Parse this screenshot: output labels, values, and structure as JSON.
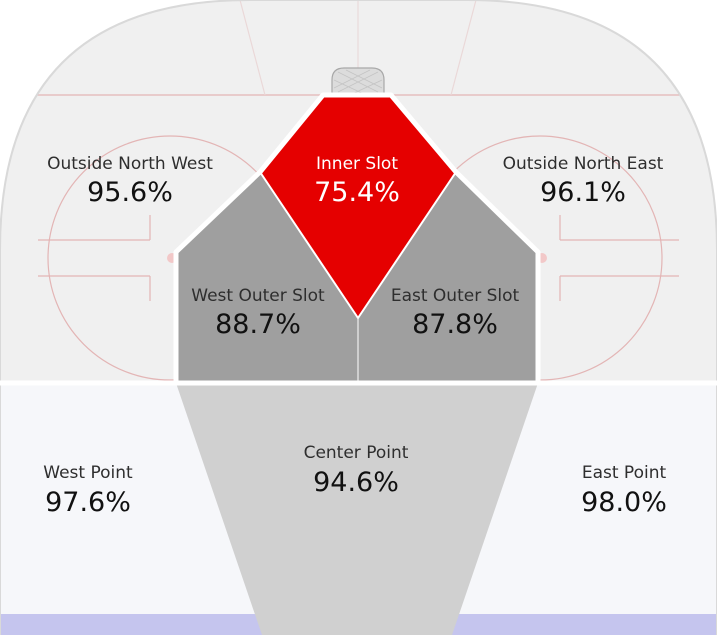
{
  "chart_data": {
    "type": "heatmap",
    "zones": [
      {
        "name": "Outside North West",
        "value": 95.6,
        "label": "95.6%"
      },
      {
        "name": "Inner Slot",
        "value": 75.4,
        "label": "75.4%"
      },
      {
        "name": "Outside North East",
        "value": 96.1,
        "label": "96.1%"
      },
      {
        "name": "West Outer Slot",
        "value": 88.7,
        "label": "88.7%"
      },
      {
        "name": "East Outer Slot",
        "value": 87.8,
        "label": "87.8%"
      },
      {
        "name": "West Point",
        "value": 97.6,
        "label": "97.6%"
      },
      {
        "name": "Center Point",
        "value": 94.6,
        "label": "94.6%"
      },
      {
        "name": "East Point",
        "value": 98.0,
        "label": "98.0%"
      }
    ]
  },
  "colors": {
    "highlight": "#e50000",
    "outer_slot": "#9f9f9f",
    "center_point": "#d0d0d0",
    "ice_upper": "#f0f0f0",
    "ice_lower": "#f6f7fa",
    "rink_line": "#e3b5b5",
    "blue_line": "#c5c5ee"
  }
}
